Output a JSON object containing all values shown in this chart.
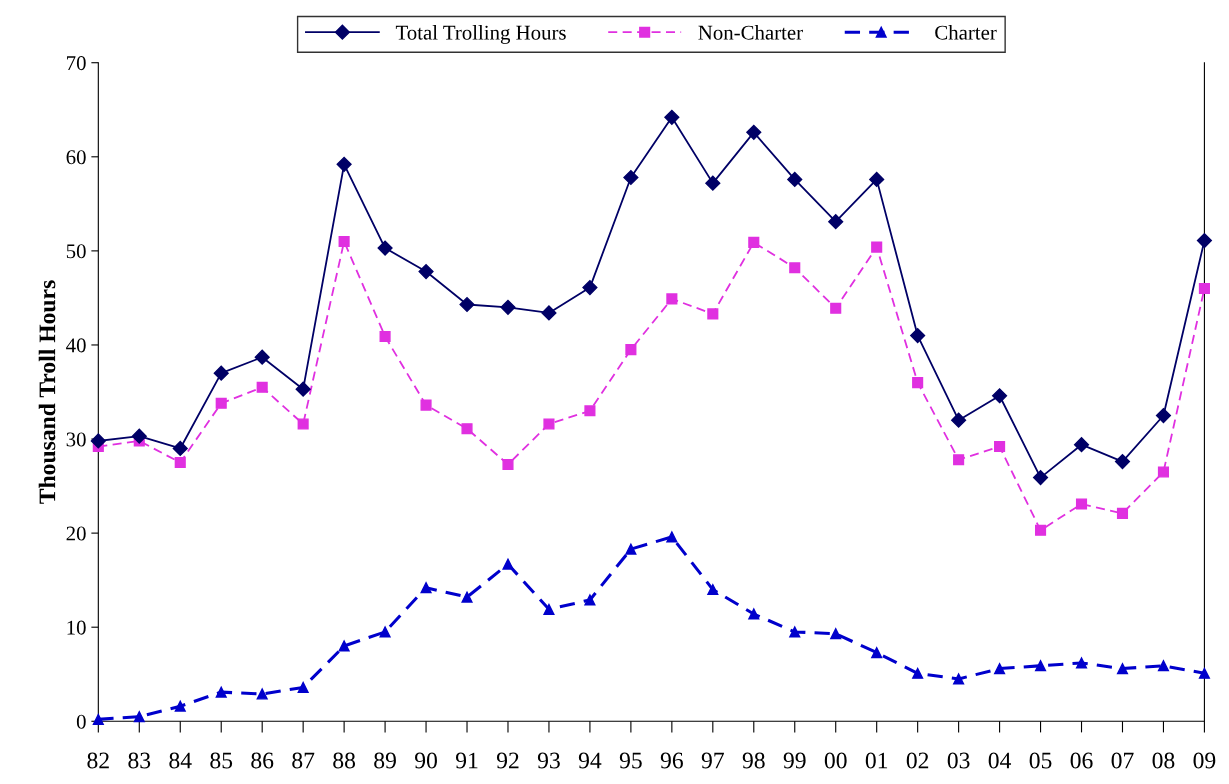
{
  "chart_data": {
    "type": "line",
    "ylabel": "Thousand Troll Hours",
    "categories": [
      "82",
      "83",
      "84",
      "85",
      "86",
      "87",
      "88",
      "89",
      "90",
      "91",
      "92",
      "93",
      "94",
      "95",
      "96",
      "97",
      "98",
      "99",
      "00",
      "01",
      "02",
      "03",
      "04",
      "05",
      "06",
      "07",
      "08",
      "09"
    ],
    "series": [
      {
        "name": "Total Trolling Hours",
        "color": "#000066",
        "marker": "diamond",
        "line_style": "solid",
        "values": [
          29.8,
          30.3,
          29.0,
          37.0,
          38.7,
          35.3,
          59.2,
          50.3,
          47.8,
          44.3,
          44.0,
          43.4,
          46.1,
          57.8,
          64.2,
          57.2,
          62.6,
          57.6,
          53.1,
          57.6,
          41.0,
          32.0,
          34.6,
          25.9,
          29.4,
          27.6,
          32.5,
          51.1
        ]
      },
      {
        "name": "Non-Charter",
        "color": "#e030e0",
        "marker": "square",
        "line_style": "dashed",
        "values": [
          29.2,
          29.8,
          27.5,
          33.8,
          35.5,
          31.6,
          51.0,
          40.9,
          33.6,
          31.1,
          27.3,
          31.6,
          33.0,
          39.5,
          44.9,
          43.3,
          50.9,
          48.2,
          43.9,
          50.4,
          36.0,
          27.8,
          29.2,
          20.3,
          23.1,
          22.1,
          26.5,
          46.0
        ]
      },
      {
        "name": "Charter",
        "color": "#0000cc",
        "marker": "triangle",
        "line_style": "dashed",
        "values": [
          0.2,
          0.5,
          1.6,
          3.1,
          2.9,
          3.6,
          8.0,
          9.5,
          14.2,
          13.2,
          16.7,
          11.9,
          12.9,
          18.3,
          19.6,
          14.0,
          11.4,
          9.5,
          9.3,
          7.3,
          5.1,
          4.5,
          5.6,
          5.9,
          6.2,
          5.6,
          5.9,
          5.1
        ]
      }
    ],
    "ylim": [
      0,
      70
    ],
    "yticks": [
      0,
      10,
      20,
      30,
      40,
      50,
      60,
      70
    ],
    "grid": false,
    "legend": "top"
  }
}
